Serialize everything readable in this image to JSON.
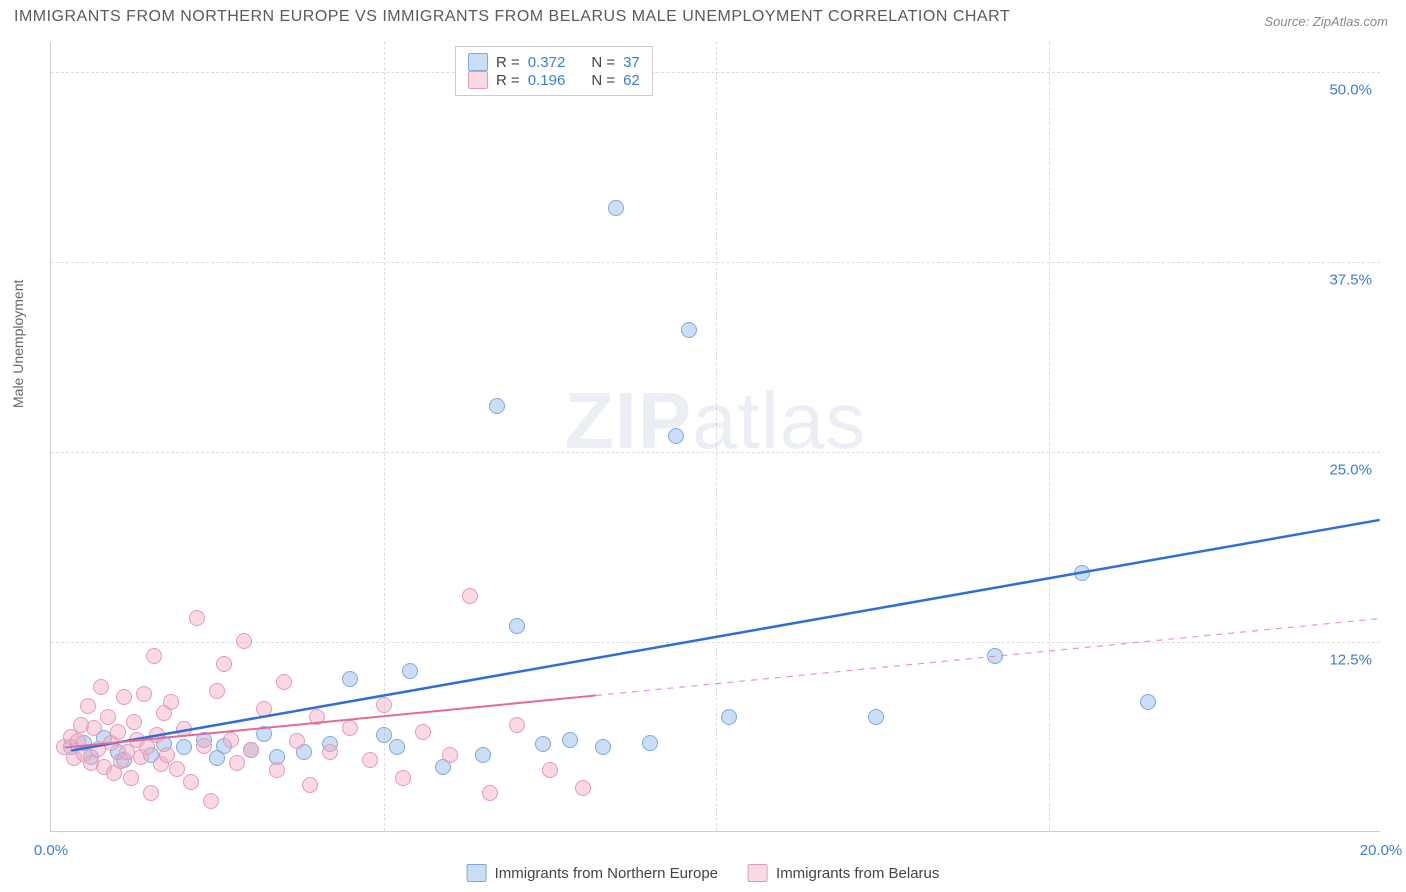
{
  "chart": {
    "type": "scatter",
    "title": "IMMIGRANTS FROM NORTHERN EUROPE VS IMMIGRANTS FROM BELARUS MALE UNEMPLOYMENT CORRELATION CHART",
    "source_label": "Source:",
    "source_name": "ZipAtlas.com",
    "ylabel": "Male Unemployment",
    "watermark_bold": "ZIP",
    "watermark_light": "atlas",
    "xlim": [
      0,
      20
    ],
    "ylim": [
      0,
      52
    ],
    "xtick_labels": [
      {
        "x": 0,
        "label": "0.0%"
      },
      {
        "x": 20,
        "label": "20.0%"
      }
    ],
    "xtick_minor": [
      5,
      10,
      15
    ],
    "ytick_labels": [
      {
        "y": 12.5,
        "label": "12.5%"
      },
      {
        "y": 25.0,
        "label": "25.0%"
      },
      {
        "y": 37.5,
        "label": "37.5%"
      },
      {
        "y": 50.0,
        "label": "50.0%"
      }
    ],
    "tick_color": "#3b7dd8",
    "grid_color": "#dddddd",
    "background_color": "#ffffff",
    "series": [
      {
        "name": "Immigrants from Northern Europe",
        "fill_color": "rgba(137,181,232,0.45)",
        "stroke_color": "#7fa9d8",
        "trend_color": "#2f6fd1",
        "trend_width": 2.5,
        "trend_solid_end_x": 20,
        "trend": {
          "x1": 0.3,
          "y1": 5.3,
          "x2": 20,
          "y2": 20.5
        },
        "R": 0.372,
        "N": 37,
        "points": [
          [
            0.3,
            5.5
          ],
          [
            0.5,
            5.8
          ],
          [
            0.6,
            4.9
          ],
          [
            0.8,
            6.1
          ],
          [
            1.0,
            5.2
          ],
          [
            1.1,
            4.7
          ],
          [
            1.5,
            5.0
          ],
          [
            1.7,
            5.7
          ],
          [
            2.0,
            5.5
          ],
          [
            2.3,
            6.0
          ],
          [
            2.5,
            4.8
          ],
          [
            2.6,
            5.6
          ],
          [
            3.0,
            5.3
          ],
          [
            3.2,
            6.4
          ],
          [
            3.4,
            4.9
          ],
          [
            3.8,
            5.2
          ],
          [
            4.2,
            5.7
          ],
          [
            4.5,
            10.0
          ],
          [
            5.0,
            6.3
          ],
          [
            5.2,
            5.5
          ],
          [
            5.4,
            10.5
          ],
          [
            5.9,
            4.2
          ],
          [
            6.5,
            5.0
          ],
          [
            6.7,
            28.0
          ],
          [
            7.0,
            13.5
          ],
          [
            7.4,
            5.7
          ],
          [
            7.8,
            6.0
          ],
          [
            8.3,
            5.5
          ],
          [
            8.5,
            41.0
          ],
          [
            9.0,
            5.8
          ],
          [
            9.4,
            26.0
          ],
          [
            9.6,
            33.0
          ],
          [
            10.2,
            7.5
          ],
          [
            12.4,
            7.5
          ],
          [
            14.2,
            11.5
          ],
          [
            15.5,
            17.0
          ],
          [
            16.5,
            8.5
          ]
        ]
      },
      {
        "name": "Immigrants from Belarus",
        "fill_color": "rgba(245,170,195,0.45)",
        "stroke_color": "#e39bb4",
        "trend_color": "#e26aa0",
        "trend_width": 2,
        "trend_solid_end_x": 8.2,
        "trend": {
          "x1": 0.2,
          "y1": 5.5,
          "x2": 20,
          "y2": 14.0
        },
        "R": 0.196,
        "N": 62,
        "points": [
          [
            0.2,
            5.5
          ],
          [
            0.3,
            6.2
          ],
          [
            0.35,
            4.8
          ],
          [
            0.4,
            5.9
          ],
          [
            0.45,
            7.0
          ],
          [
            0.5,
            5.1
          ],
          [
            0.55,
            8.2
          ],
          [
            0.6,
            4.5
          ],
          [
            0.65,
            6.8
          ],
          [
            0.7,
            5.4
          ],
          [
            0.75,
            9.5
          ],
          [
            0.8,
            4.2
          ],
          [
            0.85,
            7.5
          ],
          [
            0.9,
            5.8
          ],
          [
            0.95,
            3.8
          ],
          [
            1.0,
            6.5
          ],
          [
            1.05,
            4.6
          ],
          [
            1.1,
            8.8
          ],
          [
            1.15,
            5.2
          ],
          [
            1.2,
            3.5
          ],
          [
            1.25,
            7.2
          ],
          [
            1.3,
            6.0
          ],
          [
            1.35,
            4.9
          ],
          [
            1.4,
            9.0
          ],
          [
            1.45,
            5.5
          ],
          [
            1.5,
            2.5
          ],
          [
            1.55,
            11.5
          ],
          [
            1.6,
            6.3
          ],
          [
            1.65,
            4.4
          ],
          [
            1.7,
            7.8
          ],
          [
            1.75,
            5.0
          ],
          [
            1.8,
            8.5
          ],
          [
            1.9,
            4.1
          ],
          [
            2.0,
            6.7
          ],
          [
            2.1,
            3.2
          ],
          [
            2.2,
            14.0
          ],
          [
            2.3,
            5.6
          ],
          [
            2.4,
            2.0
          ],
          [
            2.5,
            9.2
          ],
          [
            2.6,
            11.0
          ],
          [
            2.7,
            6.0
          ],
          [
            2.8,
            4.5
          ],
          [
            2.9,
            12.5
          ],
          [
            3.0,
            5.3
          ],
          [
            3.2,
            8.0
          ],
          [
            3.4,
            4.0
          ],
          [
            3.5,
            9.8
          ],
          [
            3.7,
            5.9
          ],
          [
            3.9,
            3.0
          ],
          [
            4.0,
            7.5
          ],
          [
            4.2,
            5.2
          ],
          [
            4.5,
            6.8
          ],
          [
            4.8,
            4.7
          ],
          [
            5.0,
            8.3
          ],
          [
            5.3,
            3.5
          ],
          [
            5.6,
            6.5
          ],
          [
            6.0,
            5.0
          ],
          [
            6.3,
            15.5
          ],
          [
            6.6,
            2.5
          ],
          [
            7.0,
            7.0
          ],
          [
            7.5,
            4.0
          ],
          [
            8.0,
            2.8
          ]
        ]
      }
    ],
    "legend_stats": {
      "rows": [
        {
          "swatch_fill": "rgba(137,181,232,0.45)",
          "swatch_stroke": "#7fa9d8",
          "R_label": "R =",
          "R": "0.372",
          "N_label": "N =",
          "N": "37"
        },
        {
          "swatch_fill": "rgba(245,170,195,0.45)",
          "swatch_stroke": "#e39bb4",
          "R_label": "R =",
          "R": "0.196",
          "N_label": "N =",
          "N": "62"
        }
      ]
    },
    "legend_bottom": [
      {
        "swatch_fill": "rgba(137,181,232,0.45)",
        "swatch_stroke": "#7fa9d8",
        "label": "Immigrants from Northern Europe"
      },
      {
        "swatch_fill": "rgba(245,170,195,0.45)",
        "swatch_stroke": "#e39bb4",
        "label": "Immigrants from Belarus"
      }
    ]
  }
}
